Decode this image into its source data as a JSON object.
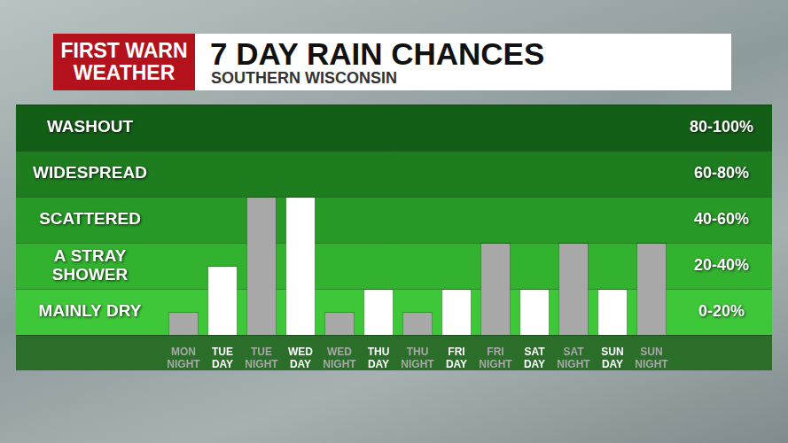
{
  "chart_data": {
    "type": "bar",
    "logo": [
      "FIRST WARN",
      "WEATHER"
    ],
    "title": "7 DAY RAIN CHANCES",
    "subtitle": "SOUTHERN WISCONSIN",
    "categories": [
      [
        "MON",
        "NIGHT"
      ],
      [
        "TUE",
        "DAY"
      ],
      [
        "TUE",
        "NIGHT"
      ],
      [
        "WED",
        "DAY"
      ],
      [
        "WED",
        "NIGHT"
      ],
      [
        "THU",
        "DAY"
      ],
      [
        "THU",
        "NIGHT"
      ],
      [
        "FRI",
        "DAY"
      ],
      [
        "FRI",
        "NIGHT"
      ],
      [
        "SAT",
        "DAY"
      ],
      [
        "SAT",
        "NIGHT"
      ],
      [
        "SUN",
        "DAY"
      ],
      [
        "SUN",
        "NIGHT"
      ]
    ],
    "values": [
      10,
      30,
      60,
      60,
      10,
      20,
      10,
      20,
      40,
      20,
      40,
      20,
      40
    ],
    "colors": [
      "#a8a8a8",
      "#ffffff",
      "#a8a8a8",
      "#ffffff",
      "#a8a8a8",
      "#ffffff",
      "#a8a8a8",
      "#ffffff",
      "#a8a8a8",
      "#ffffff",
      "#a8a8a8",
      "#ffffff",
      "#a8a8a8"
    ],
    "ylim": [
      0,
      100
    ],
    "yticks": [
      0,
      20,
      40,
      60,
      80,
      100
    ],
    "grid": true,
    "tick_labels": "x",
    "bands": [
      {
        "from": 0,
        "to": 20,
        "label": "MAINLY DRY",
        "range_label": "0-20%"
      },
      {
        "from": 20,
        "to": 40,
        "label": "A STRAY SHOWER",
        "range_label": "20-40%"
      },
      {
        "from": 40,
        "to": 60,
        "label": "SCATTERED",
        "range_label": "40-60%"
      },
      {
        "from": 60,
        "to": 80,
        "label": "WIDESPREAD",
        "range_label": "60-80%"
      },
      {
        "from": 80,
        "to": 100,
        "label": "WASHOUT",
        "range_label": "80-100%"
      }
    ]
  }
}
